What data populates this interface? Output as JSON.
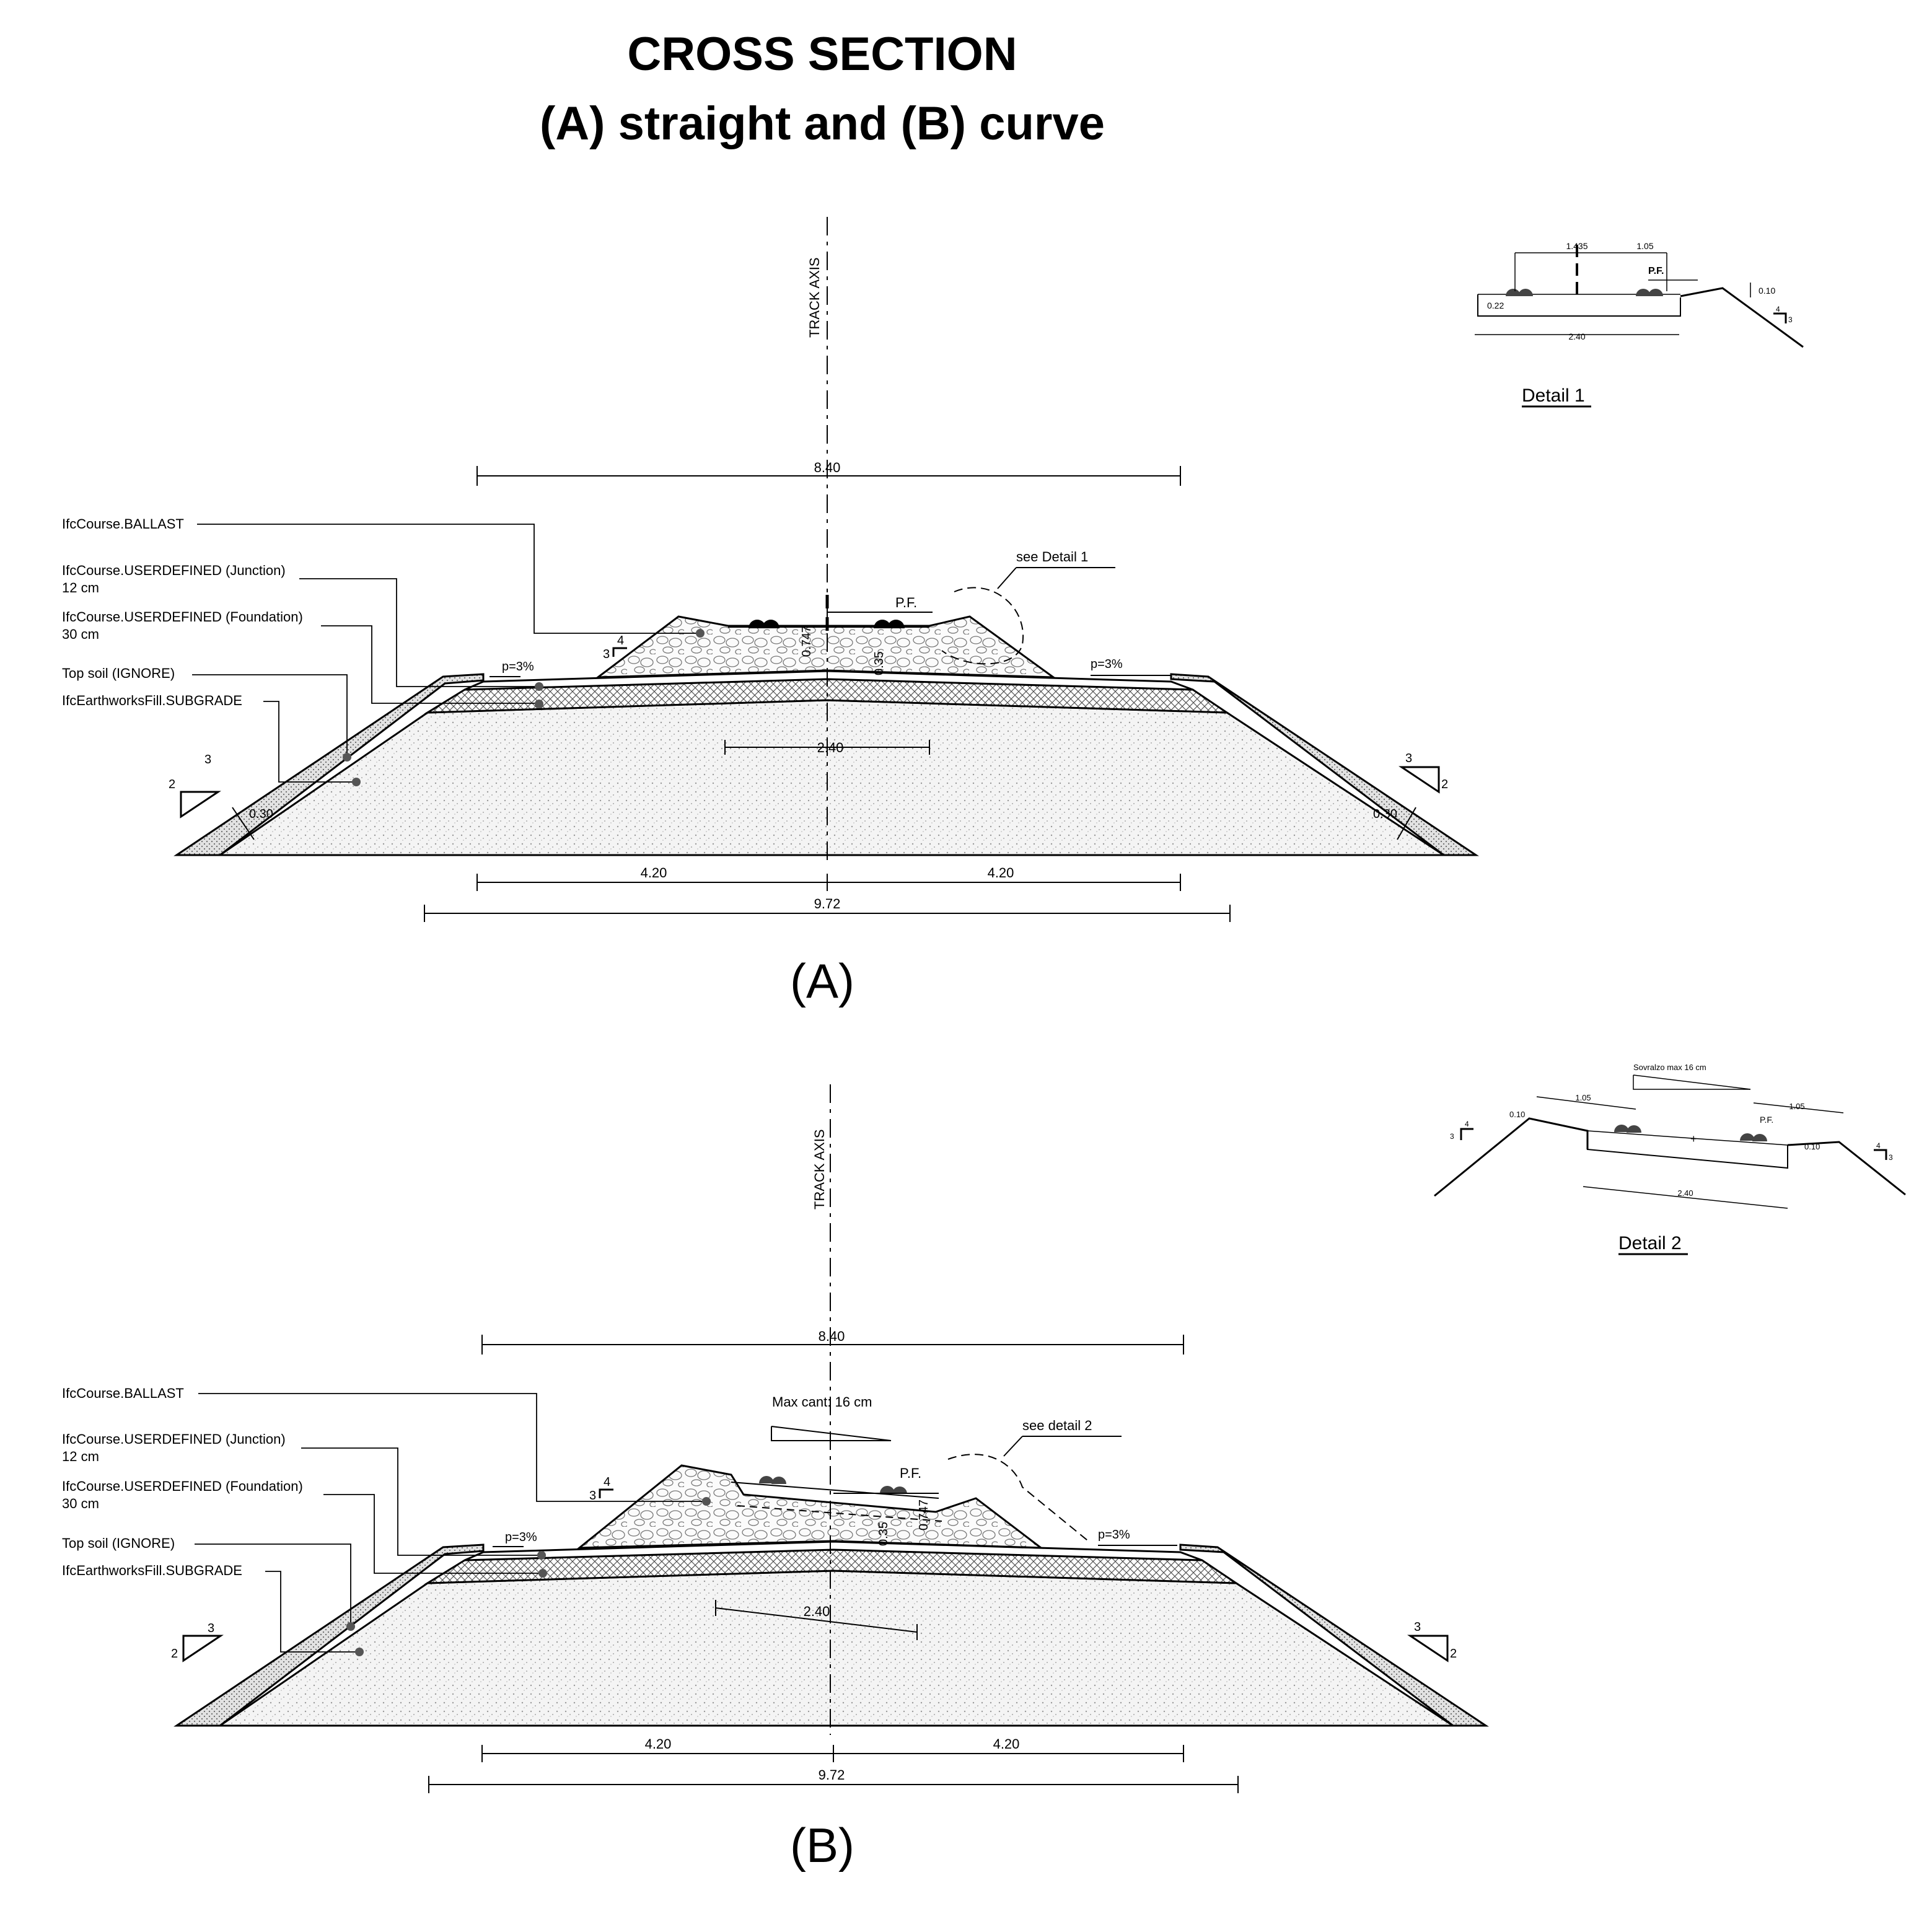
{
  "title": {
    "line1": "CROSS SECTION",
    "line2": "(A) straight and (B) curve"
  },
  "sections": [
    {
      "caption": "(A)",
      "axis_label": "TRACK AXIS",
      "layer_labels": [
        "IfcCourse.BALLAST",
        "IfcCourse.USERDEFINED (Junction)",
        "12 cm",
        "IfcCourse.USERDEFINED (Foundation)",
        "30 cm",
        "Top soil (IGNORE)",
        "IfcEarthworksFill.SUBGRADE"
      ],
      "dims": {
        "top_width": "8.40",
        "base_half_left": "4.20",
        "base_half_right": "4.20",
        "base_total": "9.72",
        "sleeper": "2.40",
        "depth": "0.747",
        "ballast_depth": "0.35",
        "topsoil_left": "0.30",
        "topsoil_right": "0.30",
        "slope_left": "p=3%",
        "slope_right": "p=3%",
        "pf": "P.F.",
        "see_detail": "see Detail 1",
        "ballast_slope_v": "3",
        "ballast_slope_h": "4",
        "emb_slope_v": "2",
        "emb_slope_h": "3"
      }
    },
    {
      "caption": "(B)",
      "axis_label": "TRACK AXIS",
      "layer_labels": [
        "IfcCourse.BALLAST",
        "IfcCourse.USERDEFINED (Junction)",
        "12 cm",
        "IfcCourse.USERDEFINED (Foundation)",
        "30 cm",
        "Top soil (IGNORE)",
        "IfcEarthworksFill.SUBGRADE"
      ],
      "dims": {
        "top_width": "8.40",
        "base_half_left": "4.20",
        "base_half_right": "4.20",
        "base_total": "9.72",
        "sleeper": "2.40",
        "depth": "0.747",
        "ballast_depth": "0.35",
        "slope_left": "p=3%",
        "slope_right": "p=3%",
        "pf": "P.F.",
        "see_detail": "see detail 2",
        "max_cant": "Max cant: 16 cm",
        "ballast_slope_v": "3",
        "ballast_slope_h": "4",
        "emb_slope_v": "2",
        "emb_slope_h": "3"
      }
    }
  ],
  "details": [
    {
      "caption": "Detail 1",
      "dims": [
        "1.435",
        "1.05",
        "P.F.",
        "0.10",
        "0.22",
        "2.40",
        "4",
        "3"
      ]
    },
    {
      "caption": "Detail 2",
      "dims": [
        "Sovralzo max 16 cm",
        "1.05",
        "1.05",
        "0.10",
        "0.10",
        "P.F.",
        "2.40",
        "4",
        "3",
        "4",
        "3"
      ]
    }
  ]
}
